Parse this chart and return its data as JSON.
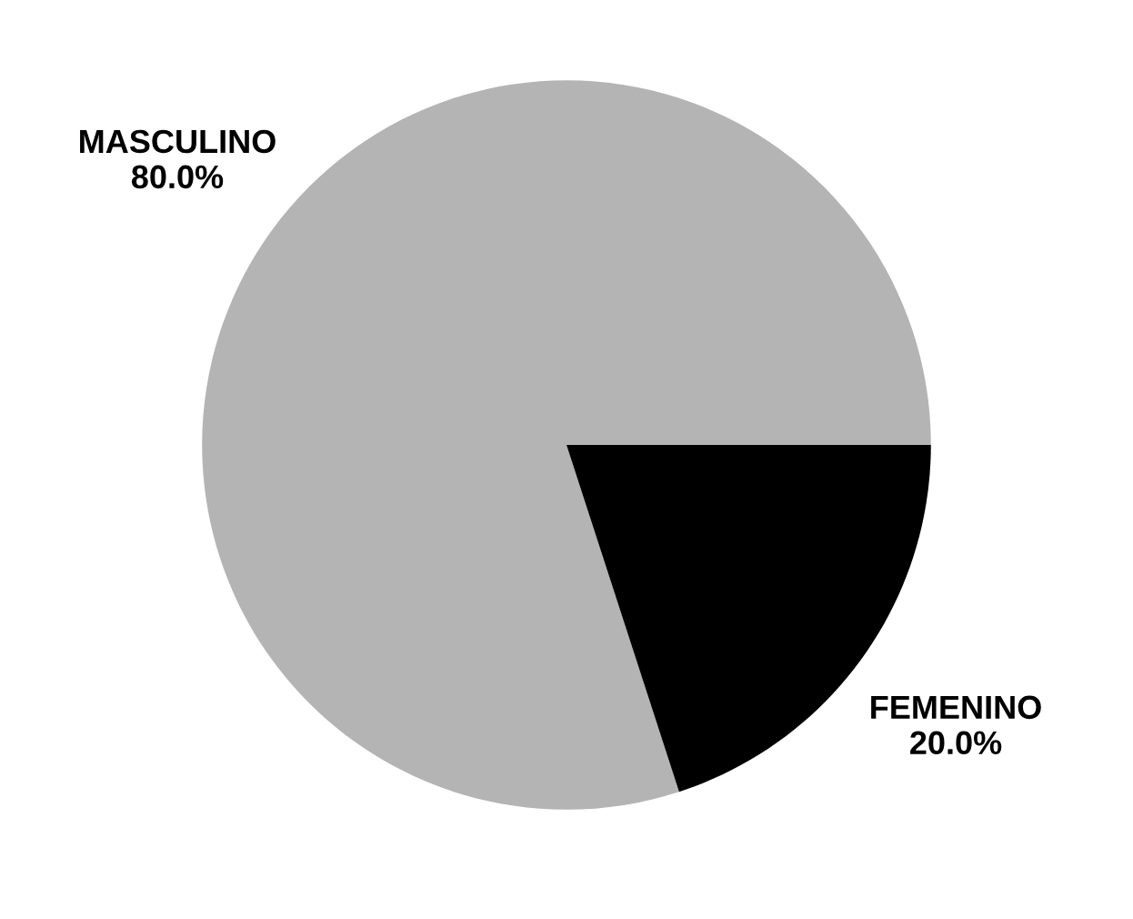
{
  "chart_data": {
    "type": "pie",
    "categories": [
      "MASCULINO",
      "FEMENINO"
    ],
    "values": [
      80.0,
      20.0
    ],
    "value_labels": [
      "80.0%",
      "20.0%"
    ],
    "colors": [
      "#b4b4b4",
      "#000000"
    ]
  }
}
